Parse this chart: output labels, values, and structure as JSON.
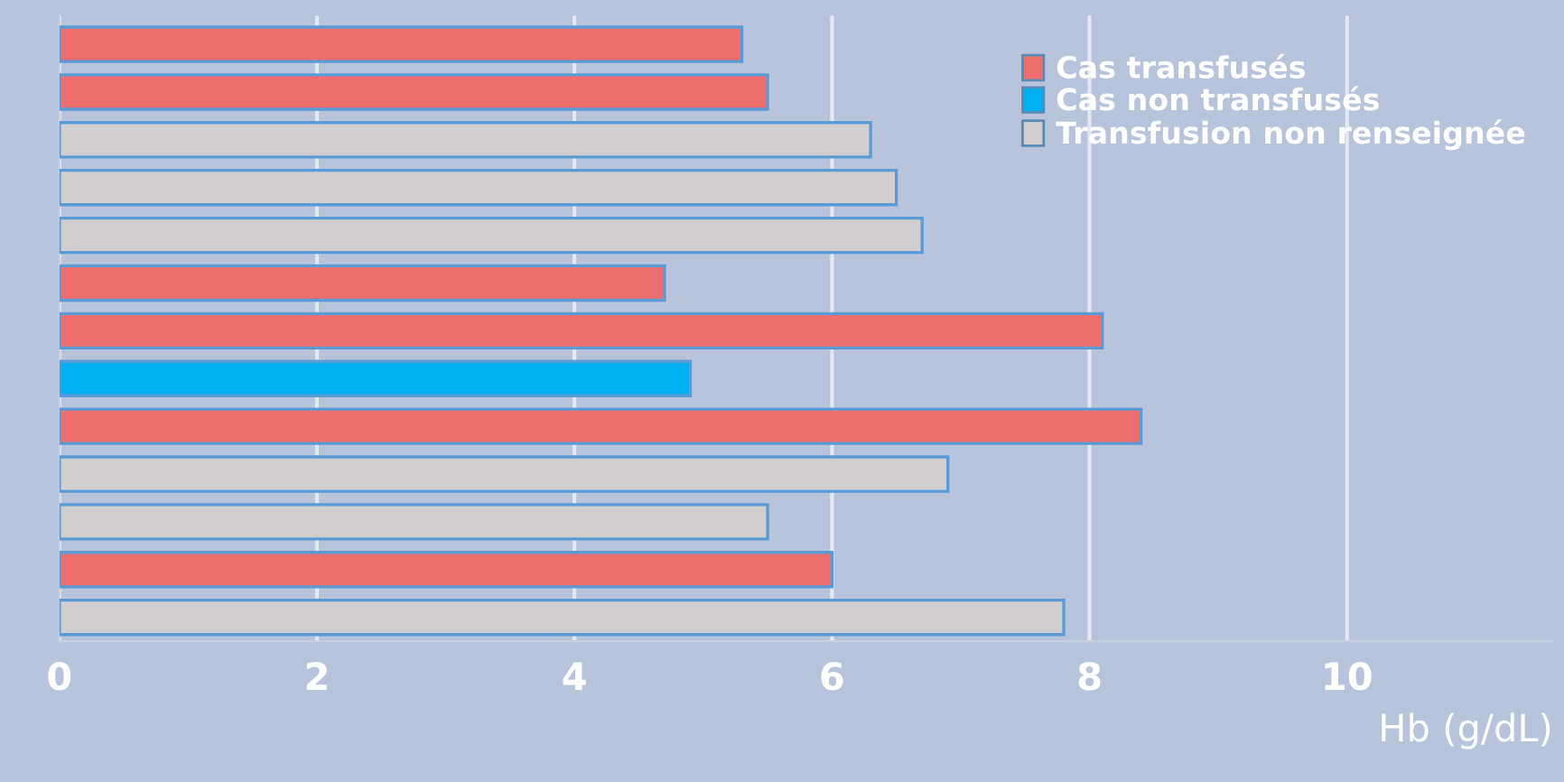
{
  "chart_data": {
    "type": "bar",
    "orientation": "horizontal",
    "categories": [
      null,
      null,
      null,
      null,
      null,
      null,
      null,
      null,
      null,
      null,
      null,
      null,
      null
    ],
    "series": [
      {
        "name": "Cas transfusés",
        "color": "#ec6e6e",
        "values": [
          5.3,
          5.5,
          null,
          null,
          null,
          4.7,
          8.1,
          null,
          8.4,
          null,
          null,
          6.0,
          null
        ]
      },
      {
        "name": "Cas non transfusés",
        "color": "#00b0f0",
        "values": [
          null,
          null,
          null,
          null,
          null,
          null,
          null,
          4.9,
          null,
          null,
          null,
          null,
          null
        ]
      },
      {
        "name": "Transfusion non renseignée",
        "color": "#d0cece",
        "values": [
          null,
          null,
          6.3,
          6.5,
          6.7,
          null,
          null,
          null,
          null,
          6.9,
          5.5,
          null,
          7.8
        ]
      }
    ],
    "xlabel": "Hb (g/dL)",
    "xlim": [
      0,
      11.6
    ],
    "xticks": [
      0,
      2,
      4,
      6,
      8,
      10
    ],
    "grid": "x",
    "legend": "top right"
  }
}
